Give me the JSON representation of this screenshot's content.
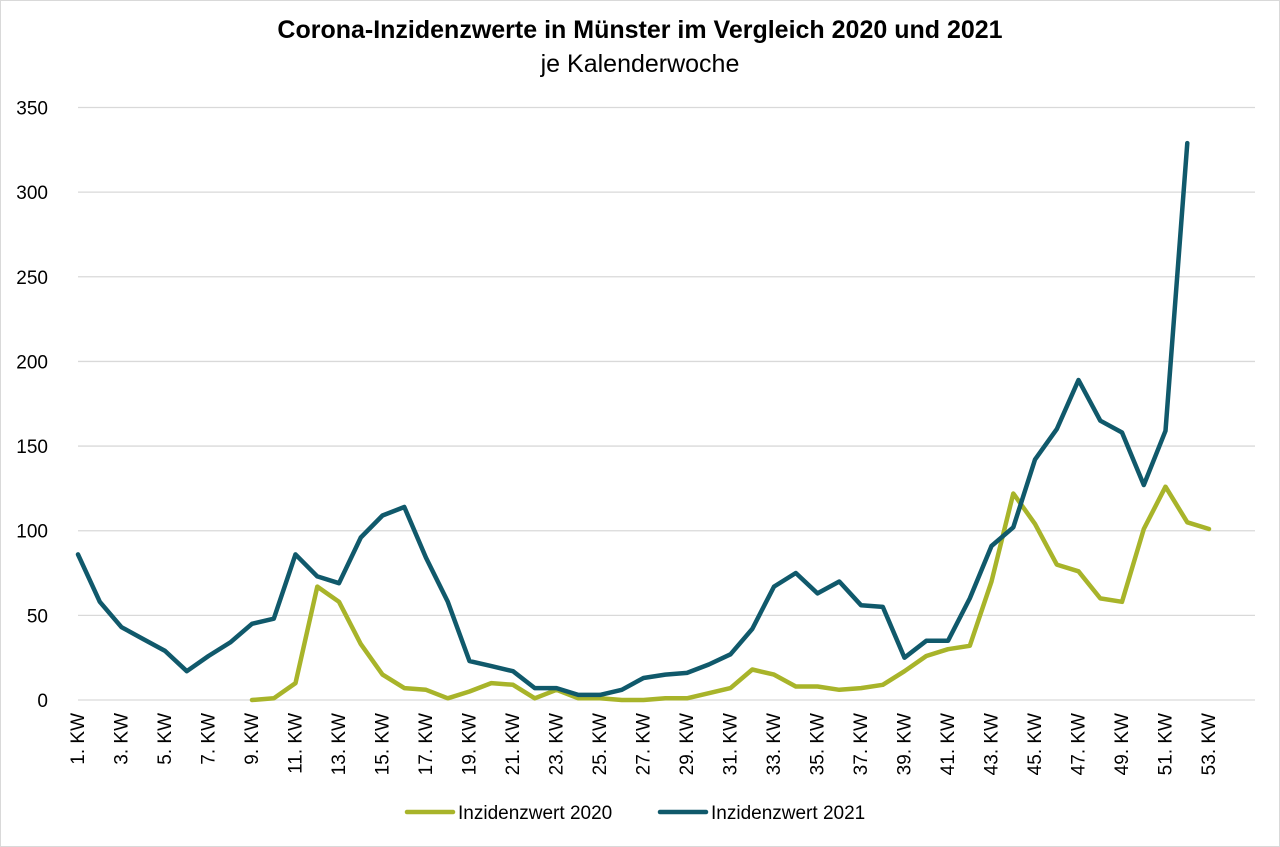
{
  "chart_data": {
    "type": "line",
    "title": "Corona-Inzidenzwerte in Münster im Vergleich 2020 und 2021",
    "subtitle": "je Kalenderwoche",
    "xlabel": "",
    "ylabel": "",
    "ylim": [
      0,
      350
    ],
    "yticks": [
      0,
      50,
      100,
      150,
      200,
      250,
      300,
      350
    ],
    "x_tick_labels": [
      "1. KW",
      "3. KW",
      "5. KW",
      "7. KW",
      "9. KW",
      "11. KW",
      "13. KW",
      "15. KW",
      "17. KW",
      "19. KW",
      "21. KW",
      "23. KW",
      "25. KW",
      "27. KW",
      "29. KW",
      "31. KW",
      "33. KW",
      "35. KW",
      "37. KW",
      "39. KW",
      "41. KW",
      "43. KW",
      "45. KW",
      "47. KW",
      "49. KW",
      "51. KW",
      "53. KW"
    ],
    "grid": "horizontal",
    "legend": "bottom",
    "series": [
      {
        "name": "Inzidenzwert 2020",
        "color": "#a8b42a",
        "x": [
          9,
          10,
          11,
          12,
          13,
          14,
          15,
          16,
          17,
          18,
          19,
          20,
          21,
          22,
          23,
          24,
          25,
          26,
          27,
          28,
          29,
          30,
          31,
          32,
          33,
          34,
          35,
          36,
          37,
          38,
          39,
          40,
          41,
          42,
          43,
          44,
          45,
          46,
          47,
          48,
          49,
          50,
          51,
          52,
          53
        ],
        "values": [
          0,
          1,
          10,
          67,
          58,
          33,
          15,
          7,
          6,
          1,
          5,
          10,
          9,
          1,
          6,
          1,
          1,
          0,
          0,
          1,
          1,
          4,
          7,
          18,
          15,
          8,
          8,
          6,
          7,
          9,
          17,
          26,
          30,
          32,
          70,
          122,
          104,
          80,
          76,
          60,
          58,
          101,
          126,
          105,
          101
        ]
      },
      {
        "name": "Inzidenzwert 2021",
        "color": "#10596b",
        "x": [
          1,
          2,
          3,
          4,
          5,
          6,
          7,
          8,
          9,
          10,
          11,
          12,
          13,
          14,
          15,
          16,
          17,
          18,
          19,
          20,
          21,
          22,
          23,
          24,
          25,
          26,
          27,
          28,
          29,
          30,
          31,
          32,
          33,
          34,
          35,
          36,
          37,
          38,
          39,
          40,
          41,
          42,
          43,
          44,
          45,
          46,
          47,
          48,
          49,
          50,
          51,
          52
        ],
        "values": [
          86,
          58,
          43,
          36,
          29,
          17,
          26,
          34,
          45,
          48,
          86,
          73,
          69,
          96,
          109,
          114,
          84,
          58,
          23,
          20,
          17,
          7,
          7,
          3,
          3,
          6,
          13,
          15,
          16,
          21,
          27,
          42,
          67,
          75,
          63,
          70,
          56,
          55,
          25,
          35,
          35,
          60,
          91,
          102,
          142,
          160,
          189,
          165,
          158,
          127,
          159,
          329
        ]
      }
    ]
  }
}
